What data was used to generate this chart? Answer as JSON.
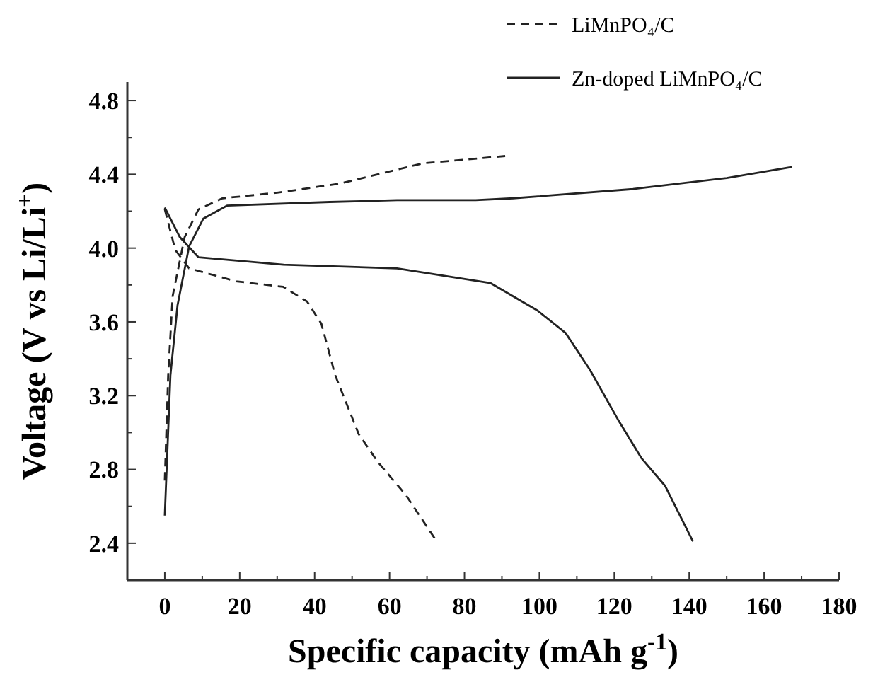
{
  "chart_data": {
    "type": "line",
    "xlabel": "Specific capacity (mAh g$^{-1}$)",
    "ylabel": "Voltage (V vs Li/Li$^{+}$)",
    "xlim": [
      -10,
      180
    ],
    "ylim": [
      2.2,
      4.9
    ],
    "xticks": [
      0,
      20,
      40,
      60,
      80,
      100,
      120,
      140,
      160,
      180
    ],
    "yticks": [
      {
        "value": 2.4,
        "label": "2.4"
      },
      {
        "value": 2.8,
        "label": "2.8"
      },
      {
        "value": 3.2,
        "label": "3.2"
      },
      {
        "value": 3.6,
        "label": "3.6"
      },
      {
        "value": 4.0,
        "label": "4.0"
      },
      {
        "value": 4.4,
        "label": "4.4"
      },
      {
        "value": 4.8,
        "label": "4.8"
      }
    ],
    "grid": false,
    "legend": "top right",
    "series": [
      {
        "name": "LiMnPO₄/C",
        "color": "#222222",
        "line_style": "dashed",
        "x": [
          0,
          0.9,
          2.1,
          5.3,
          9,
          15.4,
          30,
          46.8,
          69,
          91.3,
          null,
          0,
          2.8,
          6.5,
          19,
          31.6,
          38,
          41.8,
          45.5,
          51.8,
          56.9,
          64.4,
          72.6
        ],
        "values": [
          2.74,
          3.31,
          3.74,
          4.06,
          4.21,
          4.27,
          4.3,
          4.35,
          4.46,
          4.5,
          null,
          4.21,
          3.99,
          3.89,
          3.82,
          3.79,
          3.71,
          3.59,
          3.31,
          2.99,
          2.84,
          2.66,
          2.41
        ]
      },
      {
        "name": "Zn-doped LiMnPO₄/C",
        "color": "#222222",
        "line_style": "solid",
        "x": [
          0,
          1.5,
          3.4,
          6.5,
          10.3,
          16.6,
          44,
          62,
          83,
          93,
          125,
          150,
          167.5,
          null,
          0,
          4,
          9,
          31.7,
          62,
          87,
          99.6,
          107,
          113.5,
          121,
          127.3,
          133.6,
          141
        ],
        "values": [
          2.55,
          3.31,
          3.69,
          4.01,
          4.16,
          4.23,
          4.25,
          4.26,
          4.26,
          4.27,
          4.32,
          4.38,
          4.44,
          null,
          4.22,
          4.06,
          3.95,
          3.91,
          3.89,
          3.81,
          3.66,
          3.54,
          3.34,
          3.07,
          2.86,
          2.71,
          2.41
        ]
      }
    ]
  }
}
